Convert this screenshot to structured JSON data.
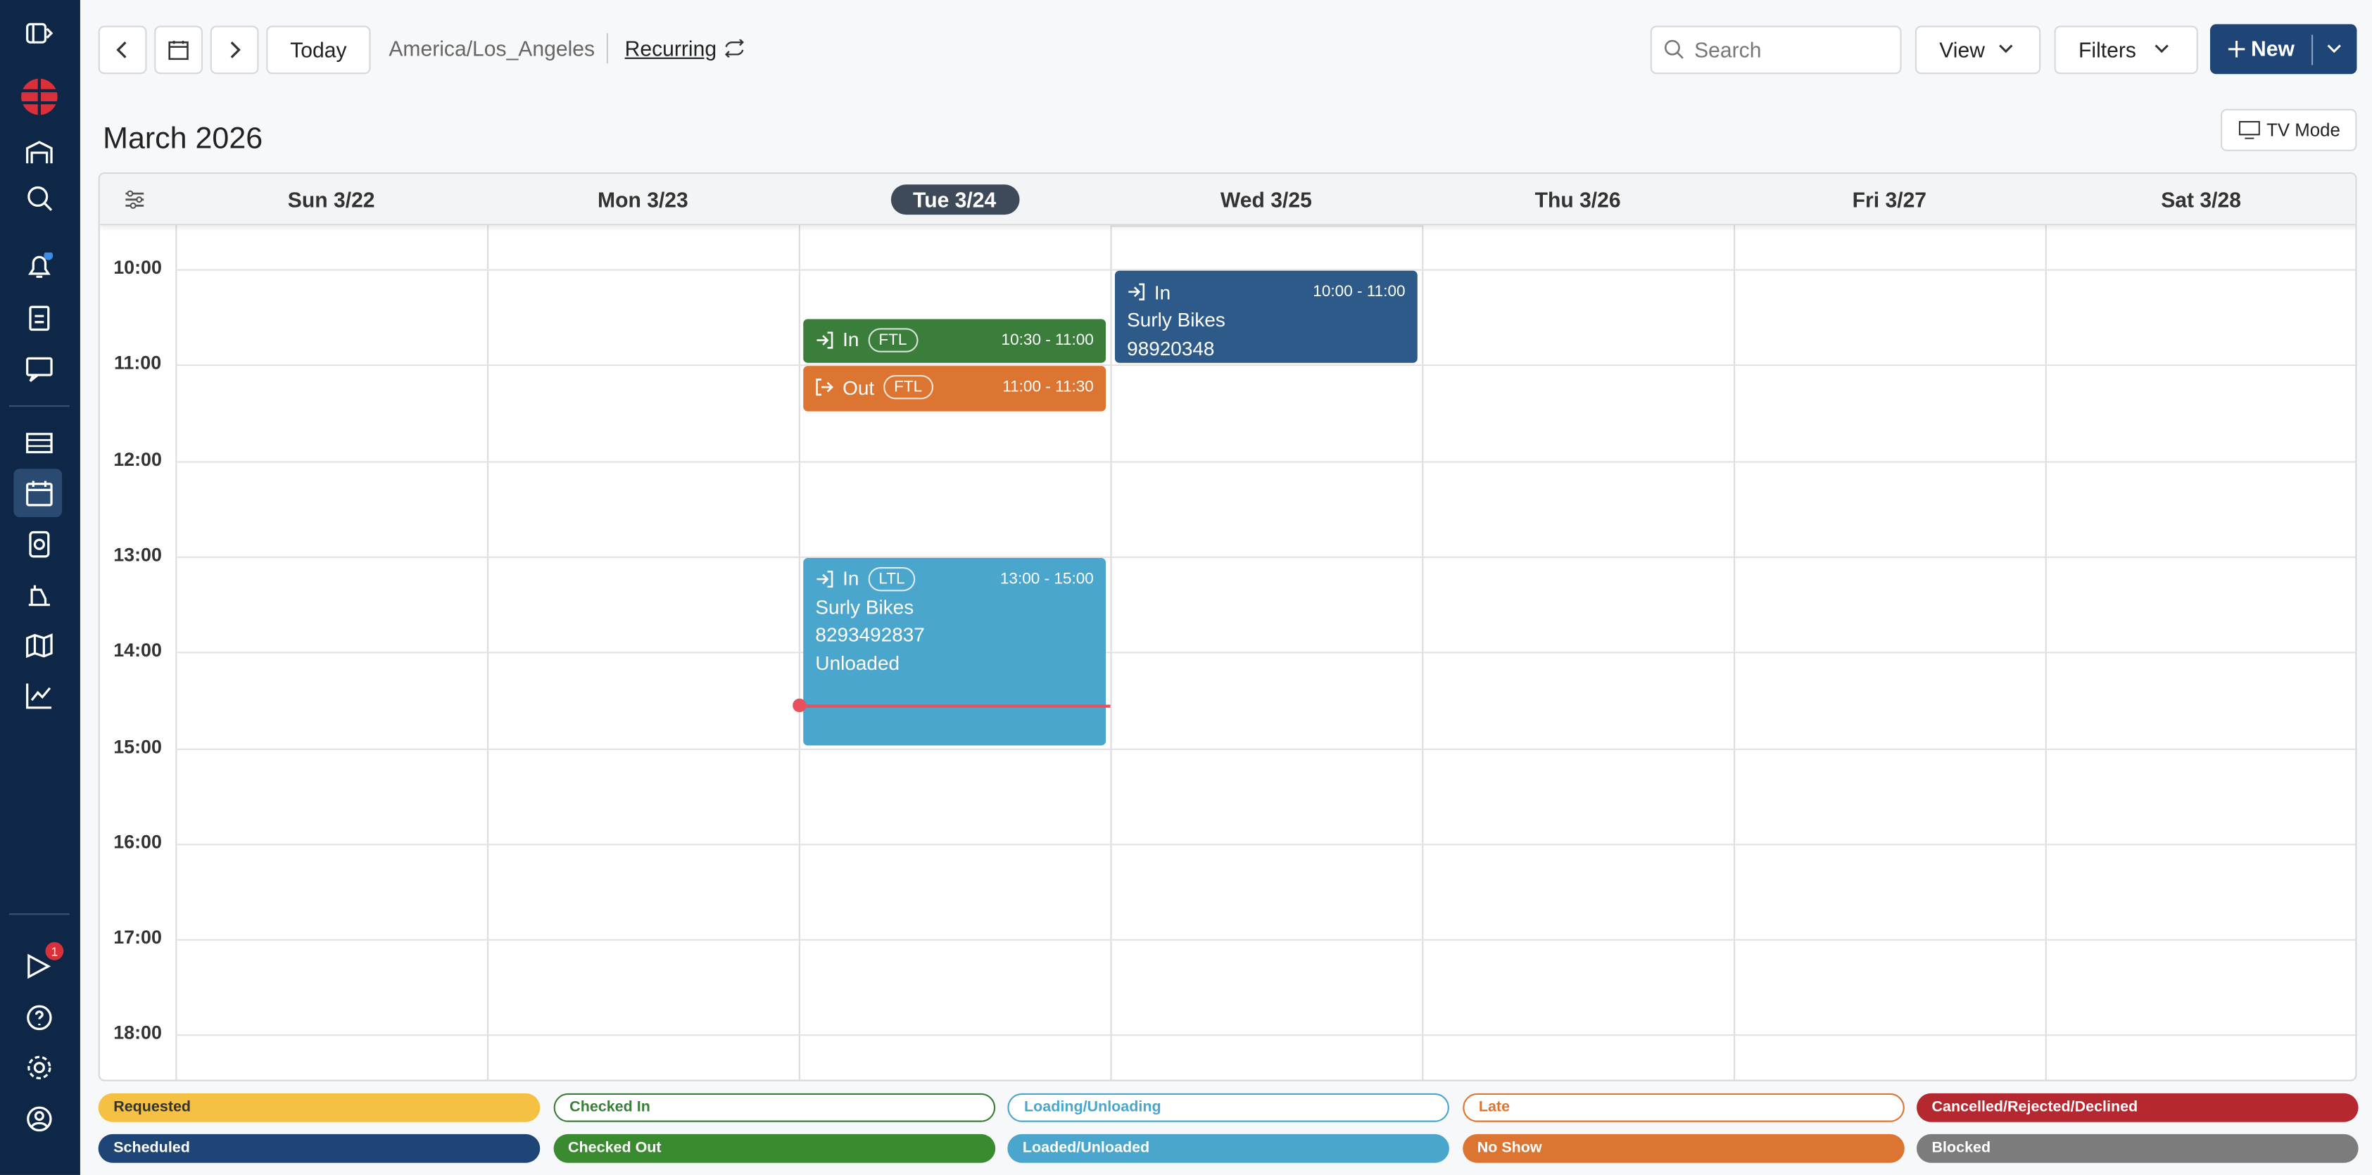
{
  "toolbar": {
    "today": "Today",
    "timezone": "America/Los_Angeles",
    "recurring": "Recurring",
    "search_placeholder": "Search",
    "view": "View",
    "filters": "Filters",
    "new": "New"
  },
  "month": "March 2026",
  "tv_mode": "TV Mode",
  "days": [
    {
      "label": "Sun 3/22"
    },
    {
      "label": "Mon 3/23"
    },
    {
      "label": "Tue 3/24",
      "today": true
    },
    {
      "label": "Wed 3/25"
    },
    {
      "label": "Thu 3/26"
    },
    {
      "label": "Fri 3/27"
    },
    {
      "label": "Sat 3/28"
    }
  ],
  "hours": [
    "10:00",
    "11:00",
    "12:00",
    "13:00",
    "14:00",
    "15:00",
    "16:00",
    "17:00",
    "18:00"
  ],
  "events": [
    {
      "day": 2,
      "direction": "In",
      "mode": "FTL",
      "time": "10:30 - 11:00",
      "color": "#3b7e3b"
    },
    {
      "day": 2,
      "direction": "Out",
      "mode": "FTL",
      "time": "11:00 - 11:30",
      "color": "#dd7532"
    },
    {
      "day": 2,
      "direction": "In",
      "mode": "LTL",
      "time": "13:00 - 15:00",
      "lines": [
        "Surly Bikes",
        "8293492837",
        "Unloaded"
      ],
      "color": "#4aa6cd"
    },
    {
      "day": 3,
      "direction": "In",
      "time": "10:00 - 11:00",
      "lines": [
        "Surly Bikes",
        "98920348"
      ],
      "color": "#2d5a88"
    }
  ],
  "legend": [
    {
      "label": "Requested",
      "color": "#f4c143",
      "filled": true
    },
    {
      "label": "Checked In",
      "color": "#3b7e3b",
      "filled": false
    },
    {
      "label": "Loading/Unloading",
      "color": "#4aa6cd",
      "filled": false
    },
    {
      "label": "Late",
      "color": "#dd7532",
      "filled": false
    },
    {
      "label": "Cancelled/Rejected/Declined",
      "color": "#b5282f",
      "filled": true
    },
    {
      "label": "Scheduled",
      "color": "#1f4476",
      "filled": true
    },
    {
      "label": "Checked Out",
      "color": "#3a8a2f",
      "filled": true
    },
    {
      "label": "Loaded/Unloaded",
      "color": "#4aa6cd",
      "filled": true
    },
    {
      "label": "No Show",
      "color": "#dd7532",
      "filled": true
    },
    {
      "label": "Blocked",
      "color": "#7c7c7c",
      "filled": true
    }
  ],
  "notification_badge": "1"
}
